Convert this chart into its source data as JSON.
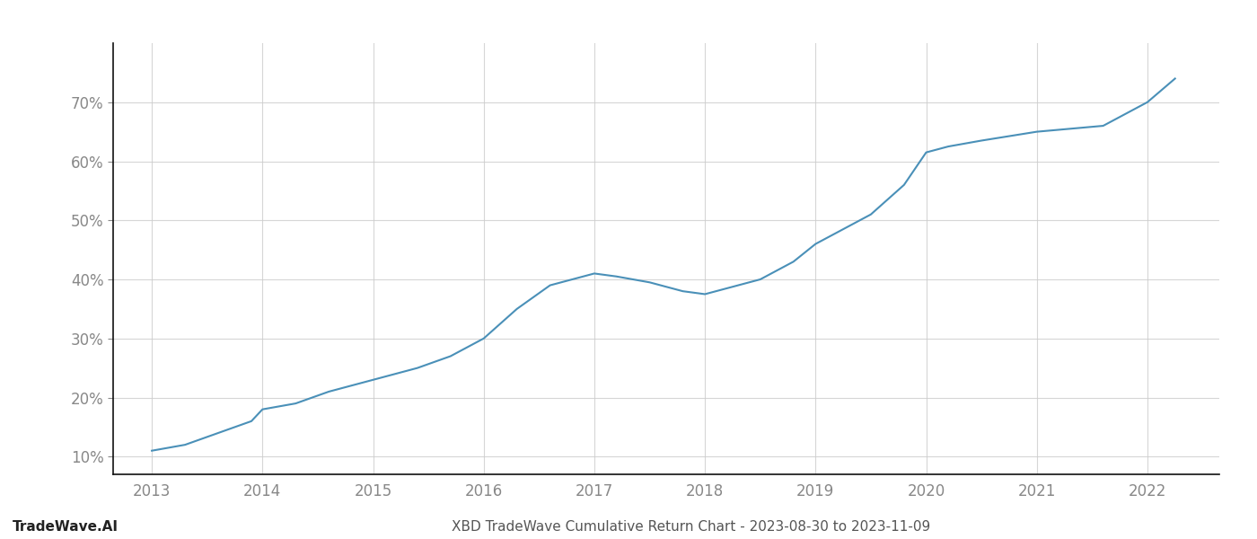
{
  "x_years": [
    2013.0,
    2013.3,
    2013.6,
    2013.9,
    2014.0,
    2014.3,
    2014.6,
    2014.8,
    2015.0,
    2015.2,
    2015.4,
    2015.7,
    2016.0,
    2016.3,
    2016.6,
    2017.0,
    2017.2,
    2017.5,
    2017.8,
    2018.0,
    2018.2,
    2018.5,
    2018.8,
    2019.0,
    2019.2,
    2019.5,
    2019.8,
    2020.0,
    2020.1,
    2020.2,
    2020.5,
    2021.0,
    2021.3,
    2021.6,
    2022.0,
    2022.25
  ],
  "y_values": [
    11,
    12,
    14,
    16,
    18,
    19,
    21,
    22,
    23,
    24,
    25,
    27,
    30,
    35,
    39,
    41,
    40.5,
    39.5,
    38,
    37.5,
    38.5,
    40,
    43,
    46,
    48,
    51,
    56,
    61.5,
    62,
    62.5,
    63.5,
    65,
    65.5,
    66,
    70,
    74
  ],
  "line_color": "#4a90b8",
  "line_width": 1.5,
  "background_color": "#ffffff",
  "grid_color": "#cccccc",
  "title_text": "XBD TradeWave Cumulative Return Chart - 2023-08-30 to 2023-11-09",
  "title_fontsize": 11,
  "title_color": "#555555",
  "watermark_text": "TradeWave.AI",
  "watermark_fontsize": 11,
  "watermark_color": "#222222",
  "xtick_labels": [
    "2013",
    "2014",
    "2015",
    "2016",
    "2017",
    "2018",
    "2019",
    "2020",
    "2021",
    "2022"
  ],
  "xtick_values": [
    2013,
    2014,
    2015,
    2016,
    2017,
    2018,
    2019,
    2020,
    2021,
    2022
  ],
  "ytick_labels": [
    "10%",
    "20%",
    "30%",
    "40%",
    "50%",
    "60%",
    "70%"
  ],
  "ytick_values": [
    10,
    20,
    30,
    40,
    50,
    60,
    70
  ],
  "xlim": [
    2012.65,
    2022.65
  ],
  "ylim": [
    7,
    80
  ],
  "tick_color": "#888888",
  "tick_fontsize": 12,
  "spine_color": "#111111",
  "left_spine_visible": true,
  "top_spine_visible": false
}
